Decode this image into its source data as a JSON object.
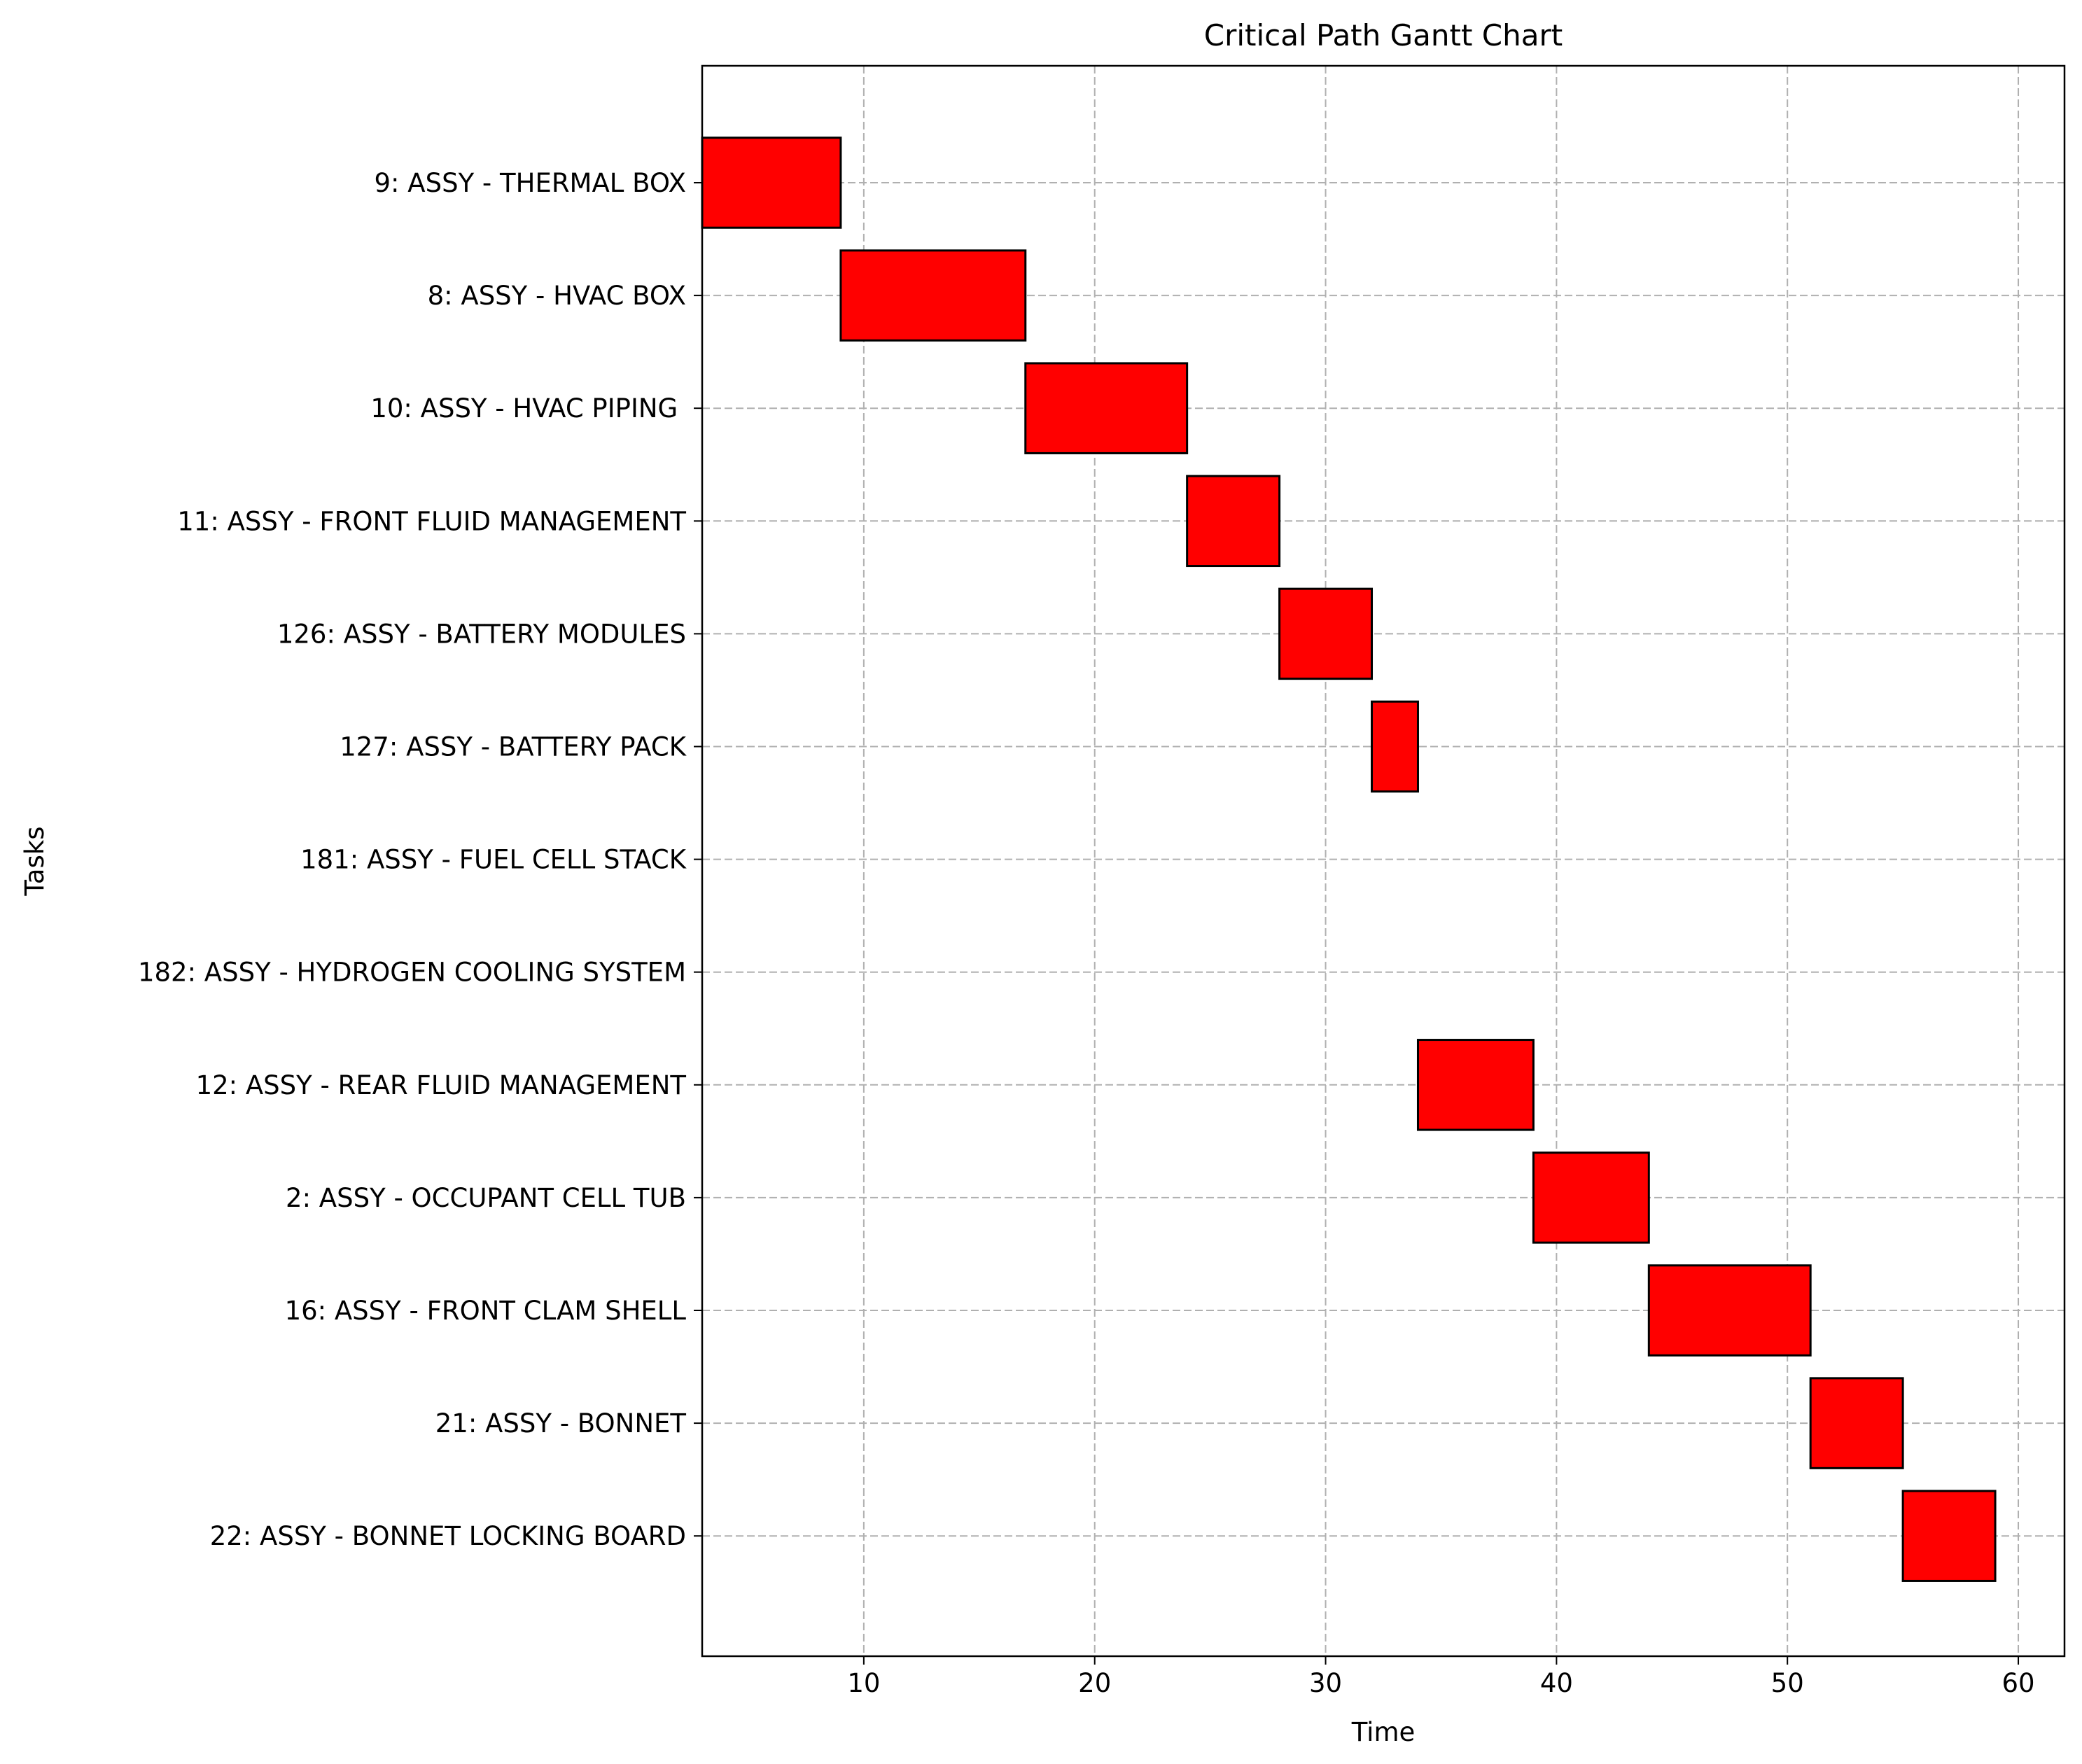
{
  "chart_data": {
    "type": "bar",
    "orientation": "horizontal",
    "title": "Critical Path Gantt Chart",
    "xlabel": "Time",
    "ylabel": "Tasks",
    "xlim": [
      3,
      62
    ],
    "xticks": [
      10,
      20,
      30,
      40,
      50,
      60
    ],
    "grid": true,
    "tasks": [
      {
        "label": "9: ASSY - THERMAL BOX",
        "start": 3,
        "end": 9
      },
      {
        "label": "8: ASSY - HVAC BOX",
        "start": 9,
        "end": 17
      },
      {
        "label": "10: ASSY - HVAC PIPING ",
        "start": 17,
        "end": 24
      },
      {
        "label": "11: ASSY - FRONT FLUID MANAGEMENT",
        "start": 24,
        "end": 28
      },
      {
        "label": "126: ASSY - BATTERY MODULES",
        "start": 28,
        "end": 32
      },
      {
        "label": "127: ASSY - BATTERY PACK",
        "start": 32,
        "end": 34
      },
      {
        "label": "181: ASSY - FUEL CELL STACK",
        "start": 34,
        "end": 34
      },
      {
        "label": "182: ASSY - HYDROGEN COOLING SYSTEM",
        "start": 34,
        "end": 34
      },
      {
        "label": "12: ASSY - REAR FLUID MANAGEMENT",
        "start": 34,
        "end": 39
      },
      {
        "label": "2: ASSY - OCCUPANT CELL TUB",
        "start": 39,
        "end": 44
      },
      {
        "label": "16: ASSY - FRONT CLAM SHELL",
        "start": 44,
        "end": 51
      },
      {
        "label": "21: ASSY - BONNET",
        "start": 51,
        "end": 55
      },
      {
        "label": "22: ASSY - BONNET LOCKING BOARD",
        "start": 55,
        "end": 59
      }
    ],
    "colors": {
      "bar_fill": "#ff0000",
      "bar_edge": "#000000",
      "grid": "#b0b0b0"
    }
  }
}
